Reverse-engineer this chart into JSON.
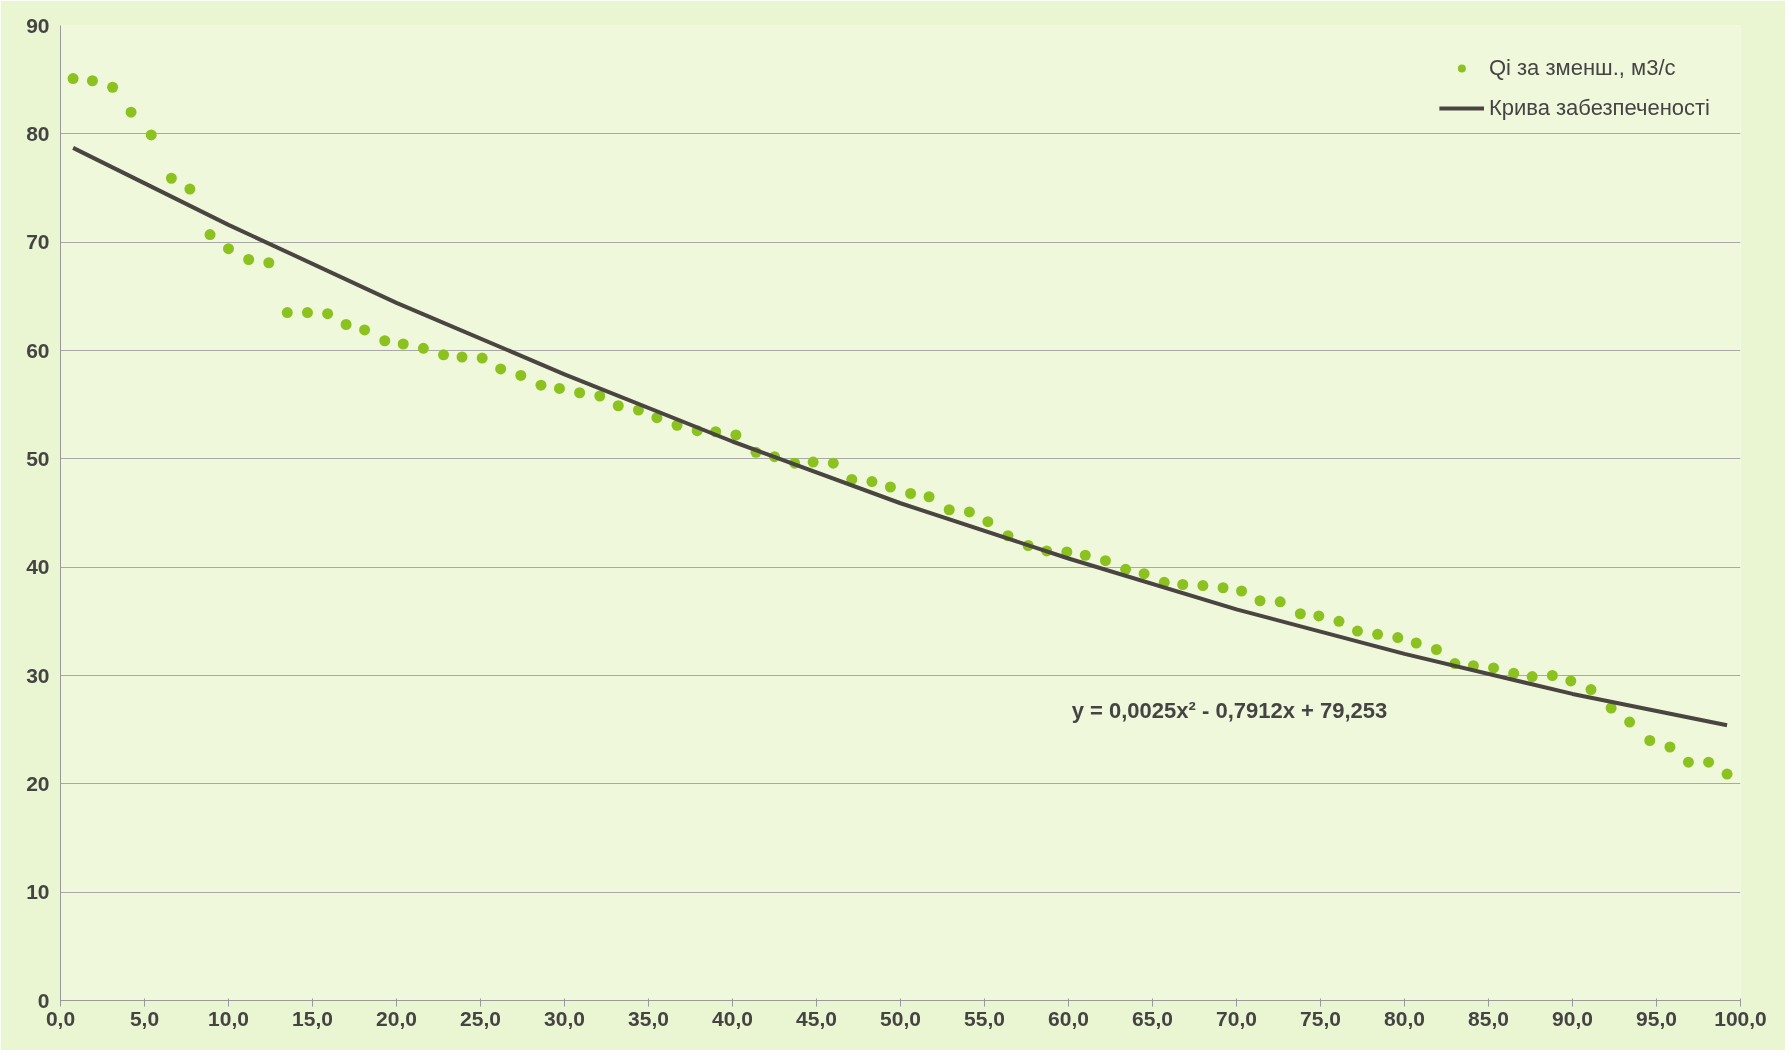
{
  "chart_data": {
    "type": "scatter",
    "xlim": [
      0,
      100
    ],
    "ylim": [
      0,
      90
    ],
    "xticks": [
      {
        "value": 0,
        "label": "0,0"
      },
      {
        "value": 5,
        "label": "5,0"
      },
      {
        "value": 10,
        "label": "10,0"
      },
      {
        "value": 15,
        "label": "15,0"
      },
      {
        "value": 20,
        "label": "20,0"
      },
      {
        "value": 25,
        "label": "25,0"
      },
      {
        "value": 30,
        "label": "30,0"
      },
      {
        "value": 35,
        "label": "35,0"
      },
      {
        "value": 40,
        "label": "40,0"
      },
      {
        "value": 45,
        "label": "45,0"
      },
      {
        "value": 50,
        "label": "50,0"
      },
      {
        "value": 55,
        "label": "55,0"
      },
      {
        "value": 60,
        "label": "60,0"
      },
      {
        "value": 65,
        "label": "65,0"
      },
      {
        "value": 70,
        "label": "70,0"
      },
      {
        "value": 75,
        "label": "75,0"
      },
      {
        "value": 80,
        "label": "80,0"
      },
      {
        "value": 85,
        "label": "85,0"
      },
      {
        "value": 90,
        "label": "90,0"
      },
      {
        "value": 95,
        "label": "95,0"
      },
      {
        "value": 100,
        "label": "100,0"
      }
    ],
    "yticks": [
      0,
      10,
      20,
      30,
      40,
      50,
      60,
      70,
      80,
      90
    ],
    "grid": "y",
    "legend": "top",
    "series": [
      {
        "name": "Qi за зменш., м3/с",
        "marker": "circle",
        "color": "#8cc21f",
        "x": [
          0.75,
          1.9,
          3.1,
          4.2,
          5.4,
          6.6,
          7.7,
          8.9,
          10.0,
          11.2,
          12.4,
          13.5,
          14.7,
          15.9,
          17.0,
          18.1,
          19.3,
          20.4,
          21.6,
          22.8,
          23.9,
          25.1,
          26.2,
          27.4,
          28.6,
          29.7,
          30.9,
          32.1,
          33.2,
          34.4,
          35.5,
          36.7,
          37.9,
          39.0,
          40.2,
          41.4,
          42.5,
          43.7,
          44.8,
          46.0,
          47.1,
          48.3,
          49.4,
          50.6,
          51.7,
          52.9,
          54.1,
          55.2,
          56.4,
          57.6,
          58.7,
          59.9,
          61.0,
          62.2,
          63.4,
          64.5,
          65.7,
          66.8,
          68.0,
          69.2,
          70.3,
          71.4,
          72.6,
          73.8,
          74.9,
          76.1,
          77.2,
          78.4,
          79.6,
          80.7,
          81.9,
          83.0,
          84.1,
          85.3,
          86.5,
          87.6,
          88.8,
          89.9,
          91.1,
          92.3,
          93.4,
          94.6,
          95.8,
          96.9,
          98.1,
          99.2
        ],
        "values": [
          85.1,
          84.9,
          84.3,
          82.0,
          79.9,
          75.9,
          74.9,
          70.7,
          69.4,
          68.4,
          68.1,
          63.5,
          63.5,
          63.4,
          62.4,
          61.9,
          60.9,
          60.6,
          60.2,
          59.6,
          59.4,
          59.3,
          58.3,
          57.7,
          56.8,
          56.5,
          56.1,
          55.8,
          54.9,
          54.5,
          53.8,
          53.1,
          52.6,
          52.5,
          52.2,
          50.6,
          50.2,
          49.6,
          49.7,
          49.6,
          48.1,
          47.9,
          47.4,
          46.8,
          46.5,
          45.3,
          45.1,
          44.2,
          42.9,
          42.0,
          41.5,
          41.4,
          41.1,
          40.6,
          39.8,
          39.4,
          38.6,
          38.4,
          38.3,
          38.1,
          37.8,
          36.9,
          36.8,
          35.7,
          35.5,
          35.0,
          34.1,
          33.8,
          33.5,
          33.0,
          32.4,
          31.1,
          30.9,
          30.7,
          30.2,
          29.9,
          30.0,
          29.5,
          28.7,
          27.0,
          25.7,
          24.0,
          23.4,
          22.0,
          22.0,
          20.9
        ]
      },
      {
        "name": "Крива забезпеченості",
        "type": "line",
        "color": "#4a4540",
        "x": [
          0.75,
          10,
          20,
          30,
          40,
          50,
          60,
          70,
          80,
          90,
          99.2
        ],
        "values": [
          78.7,
          71.6,
          64.4,
          57.8,
          51.6,
          45.9,
          40.8,
          36.1,
          32.0,
          28.3,
          25.4
        ]
      }
    ],
    "annotations": [
      "y = 0,0025x² - 0,7912x + 79,253"
    ]
  }
}
